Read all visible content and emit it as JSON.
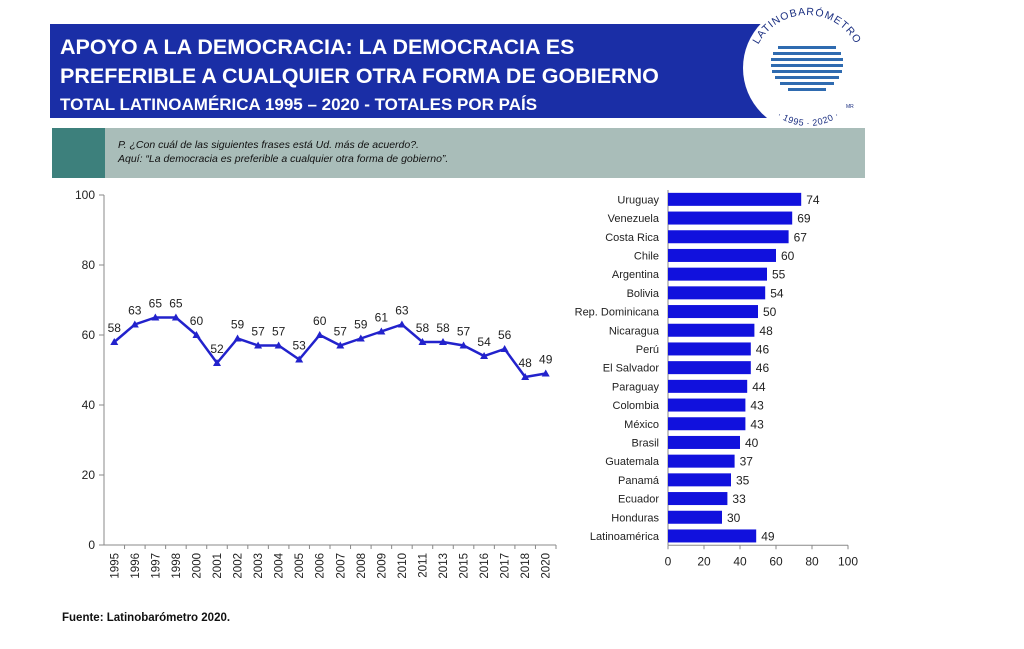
{
  "header": {
    "lines": [
      "APOYO A LA DEMOCRACIA: LA DEMOCRACIA ES",
      "PREFERIBLE A CUALQUIER OTRA FORMA DE GOBIERNO",
      "TOTAL LATINOAMÉRICA 1995 – 2020 - TOTALES POR PAÍS"
    ]
  },
  "logo": {
    "name": "LATINOBARÓMETRO",
    "years": "· 1995 · 2020 ·",
    "mark": "MR"
  },
  "question": [
    "P. ¿Con cuál de las siguientes frases está Ud. más de acuerdo?.",
    "Aquí: “La democracia es preferible a cualquier otra forma de gobierno”."
  ],
  "source": "Fuente: Latinobarómetro 2020.",
  "chart_data": [
    {
      "type": "line",
      "color": "#2222cc",
      "categories": [
        "1995",
        "1996",
        "1997",
        "1998",
        "2000",
        "2001",
        "2002",
        "2003",
        "2004",
        "2005",
        "2006",
        "2007",
        "2008",
        "2009",
        "2010",
        "2011",
        "2013",
        "2015",
        "2016",
        "2017",
        "2018",
        "2020"
      ],
      "values": [
        58,
        63,
        65,
        65,
        60,
        52,
        59,
        57,
        57,
        53,
        60,
        57,
        59,
        61,
        63,
        58,
        58,
        57,
        54,
        56,
        48,
        49
      ],
      "ylim": [
        0,
        100
      ],
      "yticks": [
        0,
        20,
        40,
        60,
        80,
        100
      ]
    },
    {
      "type": "barh",
      "color": "#1111dd",
      "categories": [
        "Uruguay",
        "Venezuela",
        "Costa Rica",
        "Chile",
        "Argentina",
        "Bolivia",
        "Rep. Dominicana",
        "Nicaragua",
        "Perú",
        "El Salvador",
        "Paraguay",
        "Colombia",
        "México",
        "Brasil",
        "Guatemala",
        "Panamá",
        "Ecuador",
        "Honduras",
        "Latinoamérica"
      ],
      "values": [
        74,
        69,
        67,
        60,
        55,
        54,
        50,
        48,
        46,
        46,
        44,
        43,
        43,
        40,
        37,
        35,
        33,
        30,
        49
      ],
      "xlim": [
        0,
        100
      ],
      "xticks": [
        0,
        20,
        40,
        60,
        80,
        100
      ]
    }
  ]
}
